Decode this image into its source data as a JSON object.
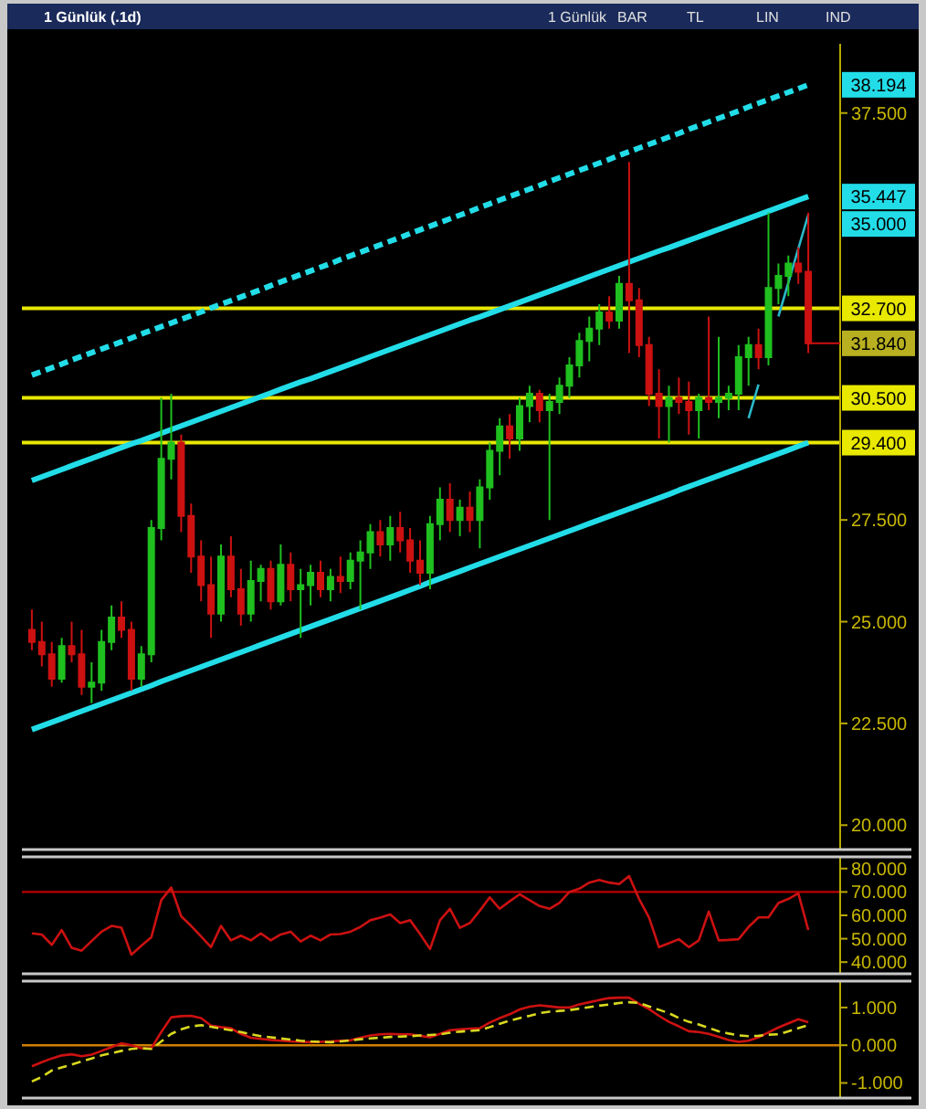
{
  "chart_data": [
    {
      "type": "candlestick",
      "title": "1 Günlük (.1d)",
      "tick_labels": "y",
      "ylim": [
        19.4,
        39.2
      ],
      "yticks": [
        {
          "value": 20,
          "label": "20.000"
        },
        {
          "value": 22.5,
          "label": "22.500"
        },
        {
          "value": 25,
          "label": "25.000"
        },
        {
          "value": 27.5,
          "label": "27.500"
        },
        {
          "value": 37.5,
          "label": "37.500"
        }
      ],
      "categories": [
        null,
        null,
        null,
        null,
        null,
        null,
        null,
        null,
        null,
        null,
        null,
        null,
        null,
        null,
        null,
        null,
        null,
        null,
        null,
        null,
        null,
        null,
        null,
        null,
        null,
        null,
        null,
        null,
        null,
        null,
        null,
        null,
        null,
        null,
        null,
        null,
        null,
        null,
        null,
        null,
        null,
        null,
        null,
        null,
        null,
        null,
        null,
        null,
        null,
        null,
        null,
        null,
        null,
        null,
        null,
        null,
        null,
        null,
        null,
        null,
        null,
        null,
        null,
        null,
        null,
        null,
        null,
        null,
        null,
        null,
        null,
        null,
        null,
        null,
        null,
        null,
        null,
        null,
        null
      ],
      "ohlc": [
        [
          24.8,
          25.3,
          24.3,
          24.5
        ],
        [
          24.5,
          25.0,
          23.9,
          24.2
        ],
        [
          24.2,
          24.5,
          23.4,
          23.6
        ],
        [
          23.6,
          24.6,
          23.5,
          24.4
        ],
        [
          24.4,
          25.0,
          24.0,
          24.2
        ],
        [
          24.2,
          24.8,
          23.2,
          23.4
        ],
        [
          23.4,
          24.0,
          23.0,
          23.5
        ],
        [
          23.5,
          24.8,
          23.3,
          24.5
        ],
        [
          24.5,
          25.4,
          24.3,
          25.1
        ],
        [
          25.1,
          25.5,
          24.6,
          24.8
        ],
        [
          24.8,
          25.0,
          23.3,
          23.6
        ],
        [
          23.6,
          24.4,
          23.4,
          24.2
        ],
        [
          24.2,
          27.5,
          24.0,
          27.3
        ],
        [
          27.3,
          30.5,
          27.0,
          29.0
        ],
        [
          29.0,
          30.6,
          28.5,
          29.4
        ],
        [
          29.4,
          29.6,
          27.2,
          27.6
        ],
        [
          27.6,
          27.9,
          26.2,
          26.6
        ],
        [
          26.6,
          27.0,
          25.5,
          25.9
        ],
        [
          25.9,
          26.6,
          24.6,
          25.2
        ],
        [
          25.2,
          26.9,
          25.0,
          26.6
        ],
        [
          26.6,
          27.1,
          25.6,
          25.8
        ],
        [
          25.8,
          26.3,
          24.9,
          25.2
        ],
        [
          25.2,
          26.5,
          25.0,
          26.0
        ],
        [
          26.0,
          26.4,
          25.5,
          26.3
        ],
        [
          26.3,
          26.5,
          25.3,
          25.5
        ],
        [
          25.5,
          26.9,
          25.4,
          26.4
        ],
        [
          26.4,
          26.7,
          25.5,
          25.8
        ],
        [
          25.8,
          26.3,
          24.6,
          25.9
        ],
        [
          25.9,
          26.4,
          25.4,
          26.2
        ],
        [
          26.2,
          26.5,
          25.6,
          25.8
        ],
        [
          25.8,
          26.3,
          25.5,
          26.1
        ],
        [
          26.1,
          26.6,
          25.7,
          26.0
        ],
        [
          26.0,
          26.7,
          25.8,
          26.5
        ],
        [
          26.5,
          27.0,
          25.3,
          26.7
        ],
        [
          26.7,
          27.4,
          26.3,
          27.2
        ],
        [
          27.2,
          27.5,
          26.6,
          26.9
        ],
        [
          26.9,
          27.6,
          26.5,
          27.3
        ],
        [
          27.3,
          27.7,
          26.7,
          27.0
        ],
        [
          27.0,
          27.3,
          26.2,
          26.5
        ],
        [
          26.5,
          27.0,
          25.9,
          26.2
        ],
        [
          26.2,
          27.6,
          25.8,
          27.4
        ],
        [
          27.4,
          28.3,
          27.0,
          28.0
        ],
        [
          28.0,
          28.4,
          27.2,
          27.5
        ],
        [
          27.5,
          28.0,
          27.1,
          27.8
        ],
        [
          27.8,
          28.2,
          27.2,
          27.5
        ],
        [
          27.5,
          28.5,
          26.8,
          28.3
        ],
        [
          28.3,
          29.4,
          28.0,
          29.2
        ],
        [
          29.2,
          30.0,
          28.6,
          29.8
        ],
        [
          29.8,
          30.1,
          29.0,
          29.5
        ],
        [
          29.5,
          30.5,
          29.2,
          30.3
        ],
        [
          30.3,
          30.8,
          29.9,
          30.6
        ],
        [
          30.6,
          30.7,
          29.9,
          30.2
        ],
        [
          30.2,
          30.6,
          27.5,
          30.4
        ],
        [
          30.4,
          31.0,
          30.1,
          30.8
        ],
        [
          30.8,
          31.5,
          30.5,
          31.3
        ],
        [
          31.3,
          32.1,
          31.0,
          31.9
        ],
        [
          31.9,
          32.5,
          31.4,
          32.2
        ],
        [
          32.2,
          32.8,
          31.8,
          32.6
        ],
        [
          32.6,
          33.0,
          32.2,
          32.4
        ],
        [
          32.4,
          33.5,
          32.2,
          33.3
        ],
        [
          33.3,
          36.3,
          31.6,
          32.9
        ],
        [
          32.9,
          33.2,
          31.5,
          31.8
        ],
        [
          31.8,
          32.0,
          30.3,
          30.6
        ],
        [
          30.6,
          31.2,
          29.5,
          30.3
        ],
        [
          30.3,
          30.8,
          29.4,
          30.5
        ],
        [
          30.5,
          31.0,
          30.1,
          30.4
        ],
        [
          30.4,
          30.9,
          29.6,
          30.2
        ],
        [
          30.2,
          30.6,
          29.5,
          30.5
        ],
        [
          30.5,
          32.5,
          30.2,
          30.4
        ],
        [
          30.4,
          32.0,
          30.0,
          30.5
        ],
        [
          30.5,
          30.8,
          30.2,
          30.6
        ],
        [
          30.6,
          31.8,
          30.2,
          31.5
        ],
        [
          31.5,
          32.0,
          30.8,
          31.8
        ],
        [
          31.8,
          32.2,
          31.2,
          31.5
        ],
        [
          31.5,
          35.05,
          31.3,
          33.2
        ],
        [
          33.2,
          33.8,
          32.8,
          33.5
        ],
        [
          33.5,
          34.0,
          33.0,
          33.8
        ],
        [
          33.8,
          34.2,
          33.3,
          33.6
        ],
        [
          33.6,
          35.05,
          31.6,
          31.84
        ]
      ],
      "series": [
        {
          "type": "line",
          "color": "#22dde8",
          "line_style": "dashed",
          "values": [
            31.06,
            31.15,
            31.24,
            31.33,
            31.43,
            31.52,
            31.61,
            31.7,
            31.79,
            31.88,
            31.97,
            32.07,
            32.16,
            32.25,
            32.34,
            32.43,
            32.52,
            32.61,
            32.71,
            32.8,
            32.89,
            32.98,
            33.07,
            33.16,
            33.26,
            33.35,
            33.44,
            33.53,
            33.62,
            33.71,
            33.8,
            33.9,
            33.99,
            34.08,
            34.17,
            34.26,
            34.35,
            34.44,
            34.54,
            34.63,
            34.72,
            34.81,
            34.9,
            34.99,
            35.08,
            35.18,
            35.27,
            35.36,
            35.45,
            35.54,
            35.63,
            35.72,
            35.82,
            35.91,
            36.0,
            36.09,
            36.18,
            36.27,
            36.36,
            36.46,
            36.55,
            36.64,
            36.73,
            36.82,
            36.91,
            37.0,
            37.1,
            37.19,
            37.28,
            37.37,
            37.46,
            37.55,
            37.65,
            37.74,
            37.83,
            37.92,
            38.01,
            38.1,
            38.194
          ]
        },
        {
          "type": "line",
          "color": "#22dde8",
          "values": [
            28.47,
            28.56,
            28.65,
            28.74,
            28.83,
            28.92,
            29.01,
            29.1,
            29.19,
            29.28,
            29.37,
            29.45,
            29.54,
            29.63,
            29.72,
            29.81,
            29.9,
            29.99,
            30.08,
            30.17,
            30.26,
            30.35,
            30.44,
            30.53,
            30.62,
            30.71,
            30.8,
            30.89,
            30.97,
            31.06,
            31.15,
            31.24,
            31.33,
            31.42,
            31.51,
            31.6,
            31.69,
            31.78,
            31.87,
            31.96,
            32.05,
            32.14,
            32.23,
            32.32,
            32.41,
            32.49,
            32.58,
            32.67,
            32.76,
            32.85,
            32.94,
            33.03,
            33.12,
            33.21,
            33.3,
            33.39,
            33.48,
            33.57,
            33.66,
            33.75,
            33.84,
            33.93,
            34.02,
            34.11,
            34.19,
            34.28,
            34.37,
            34.46,
            34.55,
            34.64,
            34.73,
            34.82,
            34.91,
            35.0,
            35.09,
            35.18,
            35.27,
            35.36,
            35.447
          ]
        },
        {
          "type": "line",
          "color": "#2bb8c8",
          "values": [
            null,
            null,
            null,
            null,
            null,
            null,
            null,
            null,
            null,
            null,
            null,
            null,
            null,
            null,
            null,
            null,
            null,
            null,
            null,
            null,
            null,
            null,
            null,
            null,
            null,
            null,
            null,
            null,
            null,
            null,
            null,
            null,
            null,
            null,
            null,
            null,
            null,
            null,
            null,
            null,
            null,
            null,
            null,
            null,
            null,
            null,
            null,
            null,
            null,
            null,
            null,
            null,
            null,
            null,
            null,
            null,
            null,
            null,
            null,
            null,
            null,
            null,
            null,
            null,
            null,
            null,
            null,
            null,
            null,
            null,
            null,
            null,
            30.0,
            30.83,
            null,
            32.5,
            33.33,
            34.17,
            35.0
          ]
        },
        {
          "type": "line",
          "color": "#22dde8",
          "values": [
            22.35,
            22.44,
            22.53,
            22.62,
            22.71,
            22.8,
            22.89,
            22.98,
            23.07,
            23.16,
            23.25,
            23.34,
            23.43,
            23.53,
            23.62,
            23.71,
            23.8,
            23.89,
            23.98,
            24.07,
            24.16,
            24.25,
            24.34,
            24.43,
            24.52,
            24.61,
            24.7,
            24.79,
            24.88,
            24.97,
            25.06,
            25.15,
            25.24,
            25.33,
            25.42,
            25.51,
            25.6,
            25.69,
            25.78,
            25.87,
            25.97,
            26.06,
            26.15,
            26.24,
            26.33,
            26.42,
            26.51,
            26.6,
            26.69,
            26.78,
            26.87,
            26.96,
            27.05,
            27.14,
            27.23,
            27.32,
            27.41,
            27.5,
            27.59,
            27.68,
            27.77,
            27.86,
            27.95,
            28.04,
            28.13,
            28.23,
            28.32,
            28.41,
            28.5,
            28.59,
            28.68,
            28.77,
            28.86,
            28.95,
            29.04,
            29.13,
            29.22,
            29.31,
            29.4
          ]
        }
      ],
      "ref_lines": [
        {
          "axis": "y",
          "value": 32.7,
          "label": "32.700",
          "color": "#e8e800"
        },
        {
          "axis": "y",
          "value": 30.5,
          "label": "30.500",
          "color": "#e8e800"
        },
        {
          "axis": "y",
          "value": 29.4,
          "label": "29.400",
          "color": "#e8e800"
        }
      ],
      "annotations": [
        "38.194",
        "35.447",
        "35.000",
        "31.840",
        "1 Günlük",
        "BAR",
        "TL",
        "LIN",
        "IND"
      ]
    },
    {
      "type": "line",
      "tick_labels": "y",
      "ylim": [
        35,
        85
      ],
      "yticks": [
        {
          "value": 40,
          "label": "40.000"
        },
        {
          "value": 50,
          "label": "50.000"
        },
        {
          "value": 60,
          "label": "60.000"
        },
        {
          "value": 70,
          "label": "70.000"
        },
        {
          "value": 80,
          "label": "80.000"
        }
      ],
      "categories": [
        null,
        null,
        null,
        null,
        null,
        null,
        null,
        null,
        null,
        null,
        null,
        null,
        null,
        null,
        null,
        null,
        null,
        null,
        null,
        null,
        null,
        null,
        null,
        null,
        null,
        null,
        null,
        null,
        null,
        null,
        null,
        null,
        null,
        null,
        null,
        null,
        null,
        null,
        null,
        null,
        null,
        null,
        null,
        null,
        null,
        null,
        null,
        null,
        null,
        null,
        null,
        null,
        null,
        null,
        null,
        null,
        null,
        null,
        null,
        null,
        null,
        null,
        null,
        null,
        null,
        null,
        null,
        null,
        null,
        null,
        null,
        null,
        null,
        null,
        null,
        null,
        null,
        null,
        null
      ],
      "series": [
        {
          "color": "#cc1111",
          "values": [
            52.3,
            51.8,
            47.4,
            53.7,
            46.1,
            44.9,
            49,
            53,
            55.5,
            54.7,
            43.2,
            47,
            50.6,
            66.5,
            71.9,
            59.6,
            55.5,
            51,
            46.4,
            55.5,
            49.3,
            51.3,
            49.3,
            52.3,
            49.3,
            51.8,
            53,
            48.8,
            51.3,
            49.3,
            51.8,
            52,
            53,
            55,
            57.9,
            59,
            60.4,
            56.7,
            57.9,
            52,
            45.6,
            57.9,
            62.8,
            54.7,
            56.7,
            62,
            67.7,
            62.8,
            66,
            69,
            66.5,
            64,
            62.8,
            65.3,
            70,
            71.4,
            74,
            75.1,
            74,
            73.4,
            76.8,
            67,
            59.1,
            46.4,
            48.1,
            49.8,
            46.4,
            49.3,
            61.6,
            49.3,
            49.5,
            49.8,
            55,
            59.1,
            59.1,
            65.3,
            67,
            69.4,
            53.7
          ]
        }
      ],
      "ref_lines": [
        {
          "axis": "y",
          "value": 70,
          "color": "#bb0000"
        }
      ]
    },
    {
      "type": "line",
      "tick_labels": "y",
      "ylim": [
        -1.4,
        1.7
      ],
      "yticks": [
        {
          "value": -1,
          "label": "-1.000"
        },
        {
          "value": 0,
          "label": "0.000"
        },
        {
          "value": 1,
          "label": "1.000"
        }
      ],
      "categories": [
        null,
        null,
        null,
        null,
        null,
        null,
        null,
        null,
        null,
        null,
        null,
        null,
        null,
        null,
        null,
        null,
        null,
        null,
        null,
        null,
        null,
        null,
        null,
        null,
        null,
        null,
        null,
        null,
        null,
        null,
        null,
        null,
        null,
        null,
        null,
        null,
        null,
        null,
        null,
        null,
        null,
        null,
        null,
        null,
        null,
        null,
        null,
        null,
        null,
        null,
        null,
        null,
        null,
        null,
        null,
        null,
        null,
        null,
        null,
        null,
        null,
        null,
        null,
        null,
        null,
        null,
        null,
        null,
        null,
        null,
        null,
        null,
        null,
        null,
        null,
        null,
        null,
        null,
        null
      ],
      "series": [
        {
          "color": "#cc1111",
          "values": [
            -0.56,
            -0.45,
            -0.35,
            -0.27,
            -0.24,
            -0.29,
            -0.25,
            -0.15,
            -0.05,
            0.05,
            0.0,
            -0.08,
            -0.08,
            0.35,
            0.74,
            0.77,
            0.78,
            0.72,
            0.52,
            0.48,
            0.45,
            0.3,
            0.2,
            0.17,
            0.14,
            0.12,
            0.1,
            0.09,
            0.08,
            0.09,
            0.1,
            0.12,
            0.13,
            0.2,
            0.26,
            0.29,
            0.3,
            0.29,
            0.29,
            0.25,
            0.21,
            0.3,
            0.4,
            0.42,
            0.44,
            0.45,
            0.6,
            0.72,
            0.82,
            0.95,
            1.02,
            1.06,
            1.03,
            1.0,
            1.0,
            1.08,
            1.14,
            1.2,
            1.25,
            1.26,
            1.26,
            1.1,
            0.96,
            0.78,
            0.62,
            0.5,
            0.37,
            0.35,
            0.3,
            0.22,
            0.14,
            0.09,
            0.12,
            0.21,
            0.34,
            0.47,
            0.58,
            0.69,
            0.61
          ]
        },
        {
          "color": "#d8d820",
          "line_style": "dashed",
          "values": [
            -0.96,
            -0.84,
            -0.67,
            -0.59,
            -0.51,
            -0.43,
            -0.35,
            -0.27,
            -0.21,
            -0.15,
            -0.1,
            -0.08,
            -0.1,
            0.1,
            0.3,
            0.42,
            0.5,
            0.53,
            0.49,
            0.44,
            0.4,
            0.35,
            0.29,
            0.24,
            0.21,
            0.18,
            0.15,
            0.12,
            0.1,
            0.09,
            0.08,
            0.1,
            0.13,
            0.16,
            0.18,
            0.2,
            0.22,
            0.23,
            0.24,
            0.26,
            0.27,
            0.29,
            0.33,
            0.36,
            0.38,
            0.4,
            0.48,
            0.57,
            0.65,
            0.72,
            0.78,
            0.85,
            0.89,
            0.91,
            0.93,
            0.97,
            1.01,
            1.05,
            1.08,
            1.12,
            1.14,
            1.12,
            1.03,
            0.94,
            0.85,
            0.72,
            0.62,
            0.55,
            0.46,
            0.37,
            0.31,
            0.26,
            0.24,
            0.25,
            0.28,
            0.29,
            0.37,
            0.45,
            0.53
          ]
        }
      ],
      "ref_lines": [
        {
          "axis": "y",
          "value": 0,
          "color": "#d08000"
        }
      ]
    }
  ]
}
